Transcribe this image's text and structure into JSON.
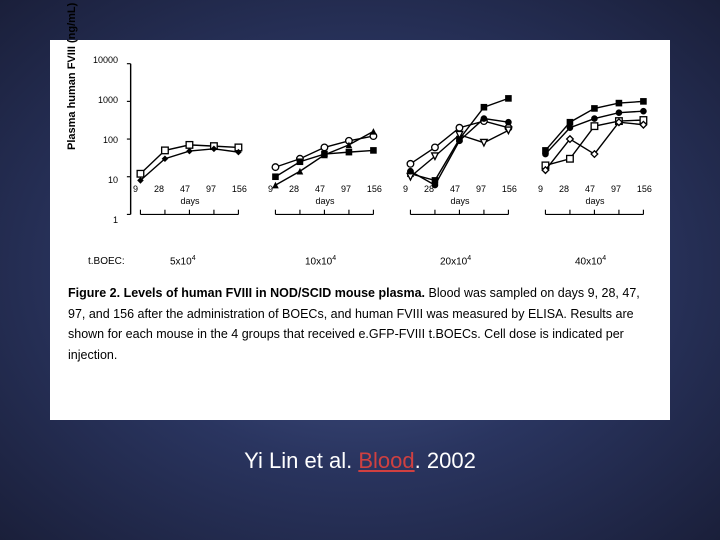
{
  "chart": {
    "type": "line",
    "y_axis_label": "Plasma human FVIII (ng/mL)",
    "y_scale": "log",
    "ylim": [
      1,
      10000
    ],
    "yticks": [
      1,
      10,
      100,
      1000,
      10000
    ],
    "x_ticks": [
      "9",
      "28",
      "47",
      "97",
      "156"
    ],
    "x_label": "days",
    "dose_label": "t.BOEC:",
    "background_color": "#ffffff",
    "line_color": "#000000",
    "panels": [
      {
        "dose": "5x10",
        "dose_exp": "4",
        "series": [
          {
            "marker": "square-open",
            "y": [
              12,
              50,
              70,
              65,
              60
            ]
          },
          {
            "marker": "diamond-filled",
            "y": [
              8,
              30,
              48,
              55,
              45
            ]
          }
        ]
      },
      {
        "dose": "10x10",
        "dose_exp": "4",
        "series": [
          {
            "marker": "circle-open",
            "y": [
              18,
              30,
              60,
              90,
              120
            ]
          },
          {
            "marker": "square-filled",
            "y": [
              10,
              25,
              40,
              45,
              50
            ]
          },
          {
            "marker": "triangle-filled",
            "y": [
              6,
              14,
              38,
              70,
              160
            ]
          }
        ]
      },
      {
        "dose": "20x10",
        "dose_exp": "4",
        "series": [
          {
            "marker": "square-filled",
            "y": [
              12,
              8,
              100,
              700,
              1200
            ]
          },
          {
            "marker": "circle-open",
            "y": [
              22,
              60,
              200,
              300,
              200
            ]
          },
          {
            "marker": "triangle-open",
            "y": [
              10,
              35,
              130,
              80,
              170
            ]
          },
          {
            "marker": "circle-filled",
            "y": [
              14,
              6,
              90,
              350,
              280
            ]
          }
        ]
      },
      {
        "dose": "40x10",
        "dose_exp": "4",
        "series": [
          {
            "marker": "square-filled",
            "y": [
              50,
              280,
              650,
              900,
              1000
            ]
          },
          {
            "marker": "circle-filled",
            "y": [
              40,
              200,
              350,
              500,
              550
            ]
          },
          {
            "marker": "square-open",
            "y": [
              20,
              30,
              220,
              300,
              320
            ]
          },
          {
            "marker": "diamond-open",
            "y": [
              15,
              100,
              40,
              280,
              240
            ]
          }
        ]
      }
    ]
  },
  "caption": {
    "title": "Figure 2. Levels of human FVIII in NOD/SCID mouse plasma.",
    "body": "Blood was sampled on days 9, 28, 47, 97, and 156 after the administration of BOECs, and human FVIII was measured by ELISA. Results are shown for each mouse in the 4 groups that received e.GFP-FVIII t.BOECs. Cell dose is indicated per injection."
  },
  "citation": {
    "authors": "Yi Lin et al.",
    "journal": "Blood",
    "year": "2002"
  },
  "slide_bg_colors": [
    "#4a5a8f",
    "#2a3560",
    "#1a1f3a"
  ]
}
